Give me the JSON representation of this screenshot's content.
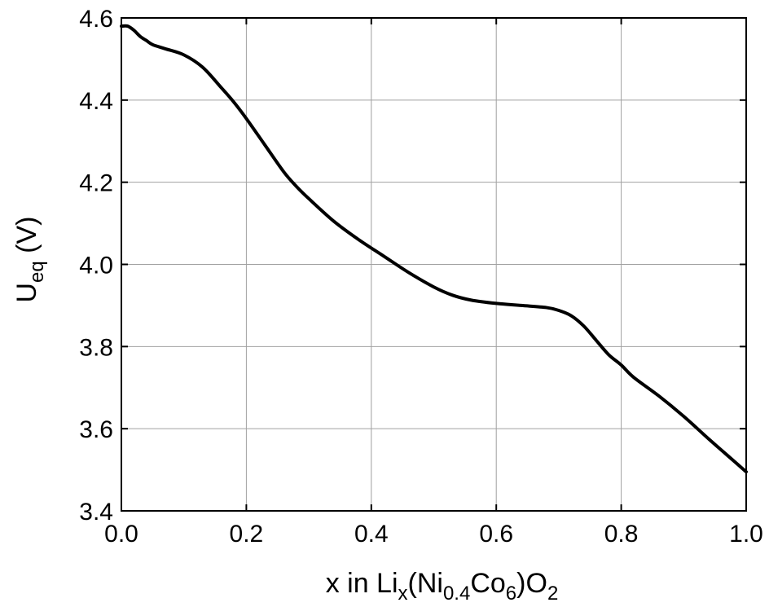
{
  "chart_data": {
    "type": "line",
    "title": "",
    "xlabel": {
      "parts": [
        {
          "text": "x in Li",
          "role": "normal"
        },
        {
          "text": "x",
          "role": "sub"
        },
        {
          "text": "(Ni",
          "role": "normal"
        },
        {
          "text": "0.4",
          "role": "sub"
        },
        {
          "text": "Co",
          "role": "normal"
        },
        {
          "text": "6",
          "role": "sub"
        },
        {
          "text": ")O",
          "role": "normal"
        },
        {
          "text": "2",
          "role": "sub"
        }
      ]
    },
    "ylabel": {
      "parts": [
        {
          "text": "U",
          "role": "normal"
        },
        {
          "text": "eq",
          "role": "sub"
        },
        {
          "text": " (V)",
          "role": "normal"
        }
      ]
    },
    "xlim": [
      0.0,
      1.0
    ],
    "ylim": [
      3.4,
      4.6
    ],
    "xticks": [
      0.0,
      0.2,
      0.4,
      0.6,
      0.8,
      1.0
    ],
    "xtick_labels": [
      "0.0",
      "0.2",
      "0.4",
      "0.6",
      "0.8",
      "1.0"
    ],
    "yticks": [
      3.4,
      3.6,
      3.8,
      4.0,
      4.2,
      4.4,
      4.6
    ],
    "ytick_labels": [
      "3.4",
      "3.6",
      "3.8",
      "4.0",
      "4.2",
      "4.4",
      "4.6"
    ],
    "grid": true,
    "line_color": "#000000",
    "grid_color": "#a0a0a0",
    "series": [
      {
        "x": [
          0.0,
          0.01,
          0.02,
          0.03,
          0.04,
          0.05,
          0.07,
          0.1,
          0.13,
          0.16,
          0.18,
          0.2,
          0.23,
          0.26,
          0.28,
          0.3,
          0.34,
          0.38,
          0.42,
          0.46,
          0.5,
          0.53,
          0.56,
          0.6,
          0.64,
          0.68,
          0.7,
          0.72,
          0.74,
          0.76,
          0.78,
          0.8,
          0.82,
          0.86,
          0.9,
          0.94,
          0.97,
          1.0
        ],
        "y": [
          4.58,
          4.58,
          4.57,
          4.555,
          4.545,
          4.535,
          4.525,
          4.51,
          4.48,
          4.43,
          4.395,
          4.355,
          4.29,
          4.225,
          4.19,
          4.16,
          4.105,
          4.06,
          4.02,
          3.98,
          3.945,
          3.925,
          3.913,
          3.905,
          3.9,
          3.895,
          3.888,
          3.875,
          3.85,
          3.815,
          3.78,
          3.755,
          3.725,
          3.68,
          3.63,
          3.575,
          3.535,
          3.495
        ]
      }
    ]
  }
}
